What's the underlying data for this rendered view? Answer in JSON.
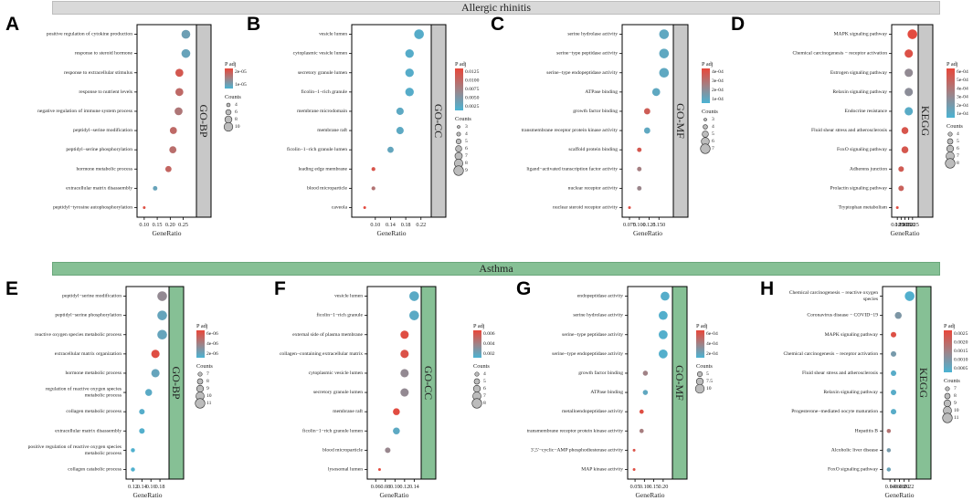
{
  "figure": {
    "banner_top": "Allergic rhinitis",
    "banner_bottom": "Asthma",
    "strip_colors": {
      "top": "#c8c8c8",
      "bottom": "#86c095"
    },
    "palette": {
      "high": "#e8473a",
      "low": "#4bb3d3",
      "mid": "#a08286"
    }
  },
  "chart_data": [
    {
      "panel": "A",
      "type": "scatter",
      "group": "Allergic rhinitis",
      "facet": "GO-BP",
      "xlabel": "GeneRatio",
      "xlim": [
        0.09,
        0.283
      ],
      "xticks": [
        0.1,
        0.15,
        0.2,
        0.25
      ],
      "xtick_labels": [
        "0.10",
        "0.15",
        "0.20",
        "0.25"
      ],
      "color_title": "P adj",
      "color_ticks": [
        "2e-05",
        "1e-05"
      ],
      "padj_range": [
        5e-07,
        2.8e-05
      ],
      "size_title": "Counts",
      "size_ticks": [
        4,
        6,
        8,
        10
      ],
      "count_range": [
        3,
        11
      ],
      "terms": [
        "positive regulation of cytokine production",
        "response to steroid hormone",
        "response to extracellular stimulus",
        "response to nutrient levels",
        "negative regulation of immune system process",
        "peptidyl−serine modification",
        "peptidyl−serine phosphorylation",
        "hormone metabolic process",
        "extracellular matrix disassembly",
        "peptidyl−tyrosine autophosphorylation"
      ],
      "gene_ratio": [
        0.26,
        0.26,
        0.235,
        0.235,
        0.232,
        0.212,
        0.21,
        0.193,
        0.142,
        0.1
      ],
      "padj": [
        6e-06,
        5e-06,
        2.4e-05,
        2e-05,
        1.7e-05,
        2e-05,
        1.9e-05,
        2.1e-05,
        5e-06,
        2.6e-05
      ],
      "counts": [
        10,
        10,
        9,
        9,
        9,
        8,
        8,
        7,
        5,
        3
      ]
    },
    {
      "panel": "B",
      "type": "scatter",
      "group": "Allergic rhinitis",
      "facet": "GO-CC",
      "xlabel": "GeneRatio",
      "xlim": [
        0.05,
        0.235
      ],
      "xticks": [
        0.1,
        0.14,
        0.18,
        0.22
      ],
      "xtick_labels": [
        "0.10",
        "0.14",
        "0.18",
        "0.22"
      ],
      "color_title": "P adj",
      "color_ticks": [
        "0.0125",
        "0.0100",
        "0.0075",
        "0.0050",
        "0.0025"
      ],
      "padj_range": [
        0.0001,
        0.0135
      ],
      "size_title": "Counts",
      "size_ticks": [
        3,
        4,
        5,
        6,
        7,
        8,
        9
      ],
      "count_range": [
        3,
        9
      ],
      "terms": [
        "vesicle lumen",
        "cytoplasmic vesicle lumen",
        "secretory granule lumen",
        "ficolin−1−rich granule",
        "membrane microdomain",
        "membrane raft",
        "ficolin−1−rich granule lumen",
        "leading edge membrane",
        "blood microparticle",
        "caveola"
      ],
      "gene_ratio": [
        0.215,
        0.19,
        0.19,
        0.19,
        0.165,
        0.165,
        0.14,
        0.095,
        0.095,
        0.072
      ],
      "padj": [
        0.001,
        0.001,
        0.001,
        0.001,
        0.0015,
        0.0015,
        0.002,
        0.012,
        0.0085,
        0.013
      ],
      "counts": [
        9,
        8,
        8,
        8,
        7,
        7,
        6,
        4,
        4,
        3
      ]
    },
    {
      "panel": "C",
      "type": "scatter",
      "group": "Allergic rhinitis",
      "facet": "GO-MF",
      "xlabel": "GeneRatio",
      "xlim": [
        0.068,
        0.175
      ],
      "xticks": [
        0.075,
        0.1,
        0.125,
        0.15
      ],
      "xtick_labels": [
        "0.075",
        "0.100",
        "0.125",
        "0.150"
      ],
      "color_title": "P adj",
      "color_ticks": [
        "4e-04",
        "3e-04",
        "2e-04",
        "1e-04"
      ],
      "padj_range": [
        5e-05,
        0.00048
      ],
      "size_title": "Counts",
      "size_ticks": [
        3,
        4,
        5,
        6,
        7
      ],
      "count_range": [
        3,
        7
      ],
      "terms": [
        "serine hydrolase activity",
        "serine−type peptidase activity",
        "serine−type endopeptidase activity",
        "ATPase binding",
        "growth factor binding",
        "transmembrane receptor protein kinase activity",
        "scaffold protein binding",
        "ligand−activated transcription factor activity",
        "nuclear receptor activity",
        "nuclear steroid receptor activity"
      ],
      "gene_ratio": [
        0.163,
        0.163,
        0.163,
        0.143,
        0.12,
        0.12,
        0.1,
        0.1,
        0.1,
        0.075
      ],
      "padj": [
        0.0001,
        0.0001,
        0.0001,
        0.0001,
        0.0004,
        0.0001,
        0.00042,
        0.00028,
        0.00025,
        0.00045
      ],
      "counts": [
        7,
        7,
        7,
        6,
        5,
        5,
        4,
        4,
        4,
        3
      ]
    },
    {
      "panel": "D",
      "type": "scatter",
      "group": "Allergic rhinitis",
      "facet": "KEGG",
      "xlabel": "GeneRatio",
      "xlim": [
        0.118,
        0.232
      ],
      "xticks": [
        0.125,
        0.15,
        0.175,
        0.2,
        0.225
      ],
      "xtick_labels": [
        "0.125",
        "0.150",
        "0.175",
        "0.200",
        "0.225"
      ],
      "color_title": "P adj",
      "color_ticks": [
        "6e-04",
        "5e-04",
        "4e-04",
        "3e-04",
        "2e-04",
        "1e-04"
      ],
      "padj_range": [
        5e-05,
        0.00065
      ],
      "size_title": "Counts",
      "size_ticks": [
        4,
        5,
        6,
        7,
        8
      ],
      "count_range": [
        3,
        8
      ],
      "terms": [
        "MAPK signaling pathway",
        "Chemical carcinogenesis − receptor activation",
        "Estrogen signaling pathway",
        "Relaxin signaling pathway",
        "Endocrine resistance",
        "Fluid shear stress and atherosclerosis",
        "FoxO signaling pathway",
        "Adherens junction",
        "Prolactin signaling pathway",
        "Tryptophan metabolism"
      ],
      "gene_ratio": [
        0.224,
        0.2,
        0.2,
        0.2,
        0.2,
        0.175,
        0.175,
        0.15,
        0.15,
        0.125
      ],
      "padj": [
        0.00063,
        0.0006,
        0.0003,
        0.00028,
        0.0001,
        0.00058,
        0.00057,
        0.00055,
        0.00052,
        0.00062
      ],
      "counts": [
        8,
        7,
        7,
        7,
        7,
        6,
        6,
        5,
        5,
        3
      ]
    },
    {
      "panel": "E",
      "type": "scatter",
      "group": "Asthma",
      "facet": "GO-BP",
      "xlabel": "GeneRatio",
      "xlim": [
        0.115,
        0.19
      ],
      "xticks": [
        0.12,
        0.14,
        0.16,
        0.18
      ],
      "xtick_labels": [
        "0.12",
        "0.14",
        "0.16",
        "0.18"
      ],
      "color_title": "P adj",
      "color_ticks": [
        "6e-06",
        "4e-06",
        "2e-06"
      ],
      "padj_range": [
        2e-07,
        6.8e-06
      ],
      "size_title": "Counts",
      "size_ticks": [
        7,
        8,
        9,
        10,
        11
      ],
      "count_range": [
        6,
        11
      ],
      "terms": [
        "peptidyl−serine modification",
        "peptidyl−serine phosphorylation",
        "reactive oxygen species metabolic process",
        "extracellular matrix organization",
        "hormone metabolic process",
        "regulation of reactive oxygen species metabolic process",
        "collagen metabolic process",
        "extracellular matrix disassembly",
        "positive regulation of reactive oxygen species metabolic process",
        "collagen catabolic process"
      ],
      "gene_ratio": [
        0.185,
        0.185,
        0.185,
        0.17,
        0.17,
        0.155,
        0.14,
        0.14,
        0.12,
        0.12
      ],
      "padj": [
        3e-06,
        1.2e-06,
        1.2e-06,
        6.4e-06,
        1.2e-06,
        8e-07,
        6e-07,
        5e-07,
        4e-07,
        4e-07
      ],
      "counts": [
        11,
        11,
        11,
        10,
        10,
        9,
        8,
        8,
        7,
        7
      ]
    },
    {
      "panel": "F",
      "type": "scatter",
      "group": "Asthma",
      "facet": "GO-CC",
      "xlabel": "GeneRatio",
      "xlim": [
        0.052,
        0.145
      ],
      "xticks": [
        0.06,
        0.08,
        0.1,
        0.12,
        0.14
      ],
      "xtick_labels": [
        "0.06",
        "0.08",
        "0.10",
        "0.12",
        "0.14"
      ],
      "color_title": "P adj",
      "color_ticks": [
        "0.006",
        "0.004",
        "0.002"
      ],
      "padj_range": [
        0.0002,
        0.0068
      ],
      "size_title": "Counts",
      "size_ticks": [
        4,
        5,
        6,
        7,
        8
      ],
      "count_range": [
        3,
        8
      ],
      "terms": [
        "vesicle lumen",
        "ficolin−1−rich granule",
        "external side of plasma membrane",
        "collagen−containing extracellular matrix",
        "cytoplasmic vesicle lumen",
        "secretory granule lumen",
        "membrane raft",
        "ficolin−1−rich granule lumen",
        "blood microparticle",
        "lysosomal lumen"
      ],
      "gene_ratio": [
        0.14,
        0.14,
        0.12,
        0.12,
        0.12,
        0.12,
        0.103,
        0.103,
        0.085,
        0.068
      ],
      "padj": [
        0.0008,
        0.0008,
        0.0064,
        0.0062,
        0.003,
        0.003,
        0.0065,
        0.0009,
        0.0032,
        0.0066
      ],
      "counts": [
        8,
        8,
        7,
        7,
        7,
        7,
        6,
        6,
        5,
        3
      ]
    },
    {
      "panel": "G",
      "type": "scatter",
      "group": "Asthma",
      "facet": "GO-MF",
      "xlabel": "GeneRatio",
      "xlim": [
        0.035,
        0.225
      ],
      "xticks": [
        0.05,
        0.1,
        0.15,
        0.2
      ],
      "xtick_labels": [
        "0.05",
        "0.10",
        "0.15",
        "0.20"
      ],
      "color_title": "P adj",
      "color_ticks": [
        "6e-04",
        "4e-04",
        "2e-04"
      ],
      "padj_range": [
        2e-05,
        0.00068
      ],
      "size_title": "Counts",
      "size_ticks": [
        5.0,
        7.5,
        10.0
      ],
      "count_range": [
        2,
        11
      ],
      "terms": [
        "endopeptidase activity",
        "serine hydrolase activity",
        "serine−type peptidase activity",
        "serine−type endopeptidase activity",
        "growth factor binding",
        "ATPase binding",
        "metalloendopeptidase activity",
        "transmembrane receptor protein kinase activity",
        "3',5'−cyclic−AMP phosphodiesterase activity",
        "MAP kinase activity"
      ],
      "gene_ratio": [
        0.21,
        0.2,
        0.2,
        0.2,
        0.105,
        0.105,
        0.085,
        0.085,
        0.045,
        0.045
      ],
      "padj": [
        6e-05,
        5e-05,
        5e-05,
        5e-05,
        0.00035,
        0.0001,
        0.00064,
        0.00038,
        0.00062,
        0.00064
      ],
      "counts": [
        10,
        10,
        10,
        10,
        5,
        5,
        4,
        4,
        2,
        2
      ]
    },
    {
      "panel": "H",
      "type": "scatter",
      "group": "Asthma",
      "facet": "KEGG",
      "xlabel": "GeneRatio",
      "xlim": [
        0.128,
        0.232
      ],
      "xticks": [
        0.14,
        0.16,
        0.18,
        0.2,
        0.22
      ],
      "xtick_labels": [
        "0.14",
        "0.16",
        "0.18",
        "0.20",
        "0.22"
      ],
      "color_title": "P adj",
      "color_ticks": [
        "0.0025",
        "0.0020",
        "0.0015",
        "0.0010",
        "0.0005"
      ],
      "padj_range": [
        0.0001,
        0.0028
      ],
      "size_title": "Counts",
      "size_ticks": [
        7,
        8,
        9,
        10,
        11
      ],
      "count_range": [
        6,
        11
      ],
      "terms": [
        "Chemical carcinogenesis − reactive oxygen species",
        "Coronavirus disease − COVID−19",
        "MAPK signaling pathway",
        "Chemical carcinogenesis − receptor activation",
        "Fluid shear stress and atherosclerosis",
        "Relaxin signaling pathway",
        "Progesterone−mediated oocyte maturation",
        "Hepatitis B",
        "Alcoholic liver disease",
        "FoxO signaling pathway"
      ],
      "gene_ratio": [
        0.223,
        0.175,
        0.155,
        0.155,
        0.155,
        0.155,
        0.155,
        0.135,
        0.135,
        0.135
      ],
      "padj": [
        0.0002,
        0.0009,
        0.0026,
        0.0008,
        0.0003,
        0.0003,
        0.0003,
        0.0018,
        0.0008,
        0.0006
      ],
      "counts": [
        11,
        9,
        8,
        8,
        8,
        8,
        8,
        7,
        7,
        7
      ]
    }
  ]
}
